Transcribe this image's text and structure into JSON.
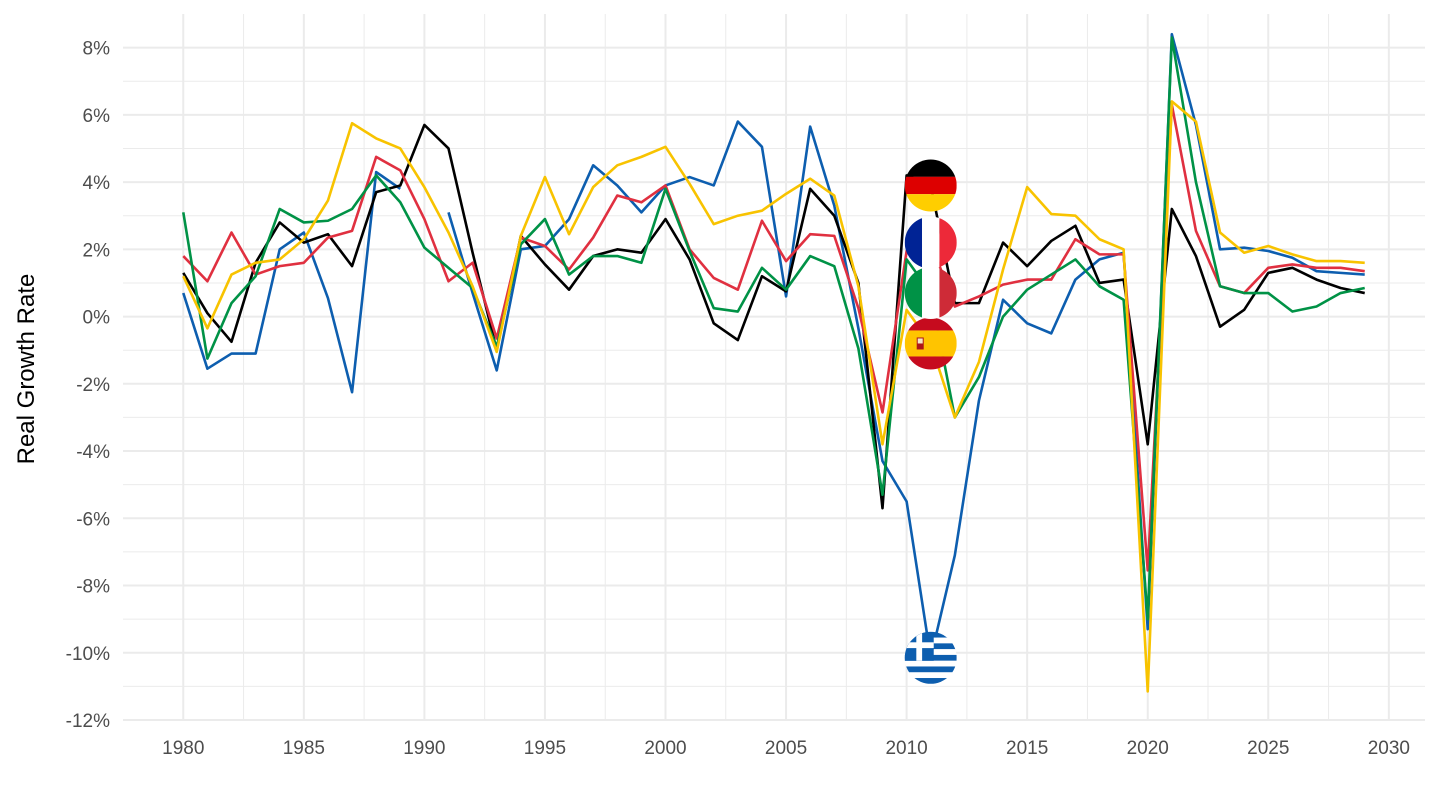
{
  "chart_data": {
    "type": "line",
    "title": "",
    "xlabel": "",
    "ylabel": "Real Growth Rate",
    "xlim": [
      1977.5,
      2031.5
    ],
    "ylim": [
      -12,
      9
    ],
    "x_ticks": [
      1980,
      1985,
      1990,
      1995,
      2000,
      2005,
      2010,
      2015,
      2020,
      2025,
      2030
    ],
    "x_tick_labels": [
      "1980",
      "1985",
      "1990",
      "1995",
      "2000",
      "2005",
      "2010",
      "2015",
      "2020",
      "2025",
      "2030"
    ],
    "y_ticks": [
      -12,
      -10,
      -8,
      -6,
      -4,
      -2,
      0,
      2,
      4,
      6,
      8
    ],
    "y_tick_labels": [
      "-12%",
      "-10%",
      "-8%",
      "-6%",
      "-4%",
      "-2%",
      "0%",
      "2%",
      "4%",
      "6%",
      "8%"
    ],
    "grid": true,
    "legend": "flag icons on lines at 2011",
    "x": [
      1980,
      1981,
      1982,
      1983,
      1984,
      1985,
      1986,
      1987,
      1988,
      1989,
      1990,
      1991,
      1992,
      1993,
      1994,
      1995,
      1996,
      1997,
      1998,
      1999,
      2000,
      2001,
      2002,
      2003,
      2004,
      2005,
      2006,
      2007,
      2008,
      2009,
      2010,
      2011,
      2012,
      2013,
      2014,
      2015,
      2016,
      2017,
      2018,
      2019,
      2020,
      2021,
      2022,
      2023,
      2024,
      2025,
      2026,
      2027,
      2028,
      2029
    ],
    "series": [
      {
        "color": "#0d5eaf",
        "flag": "greece",
        "values": [
          0.7,
          -1.55,
          -1.1,
          -1.1,
          2.0,
          2.5,
          0.55,
          -2.25,
          4.3,
          3.8,
          null,
          3.1,
          0.7,
          -1.6,
          2.0,
          2.1,
          2.9,
          4.5,
          3.9,
          3.1,
          3.9,
          4.15,
          3.9,
          5.8,
          5.05,
          0.6,
          5.65,
          3.3,
          -0.35,
          -4.3,
          -5.5,
          -10.15,
          -7.1,
          -2.5,
          0.5,
          -0.2,
          -0.5,
          1.1,
          1.7,
          1.9,
          -9.3,
          8.4,
          5.7,
          2.0,
          2.05,
          1.95,
          1.75,
          1.35,
          1.3,
          1.25
        ]
      },
      {
        "color": "#000000",
        "flag": "germany",
        "values": [
          1.3,
          0.1,
          -0.75,
          1.6,
          2.8,
          2.2,
          2.45,
          1.5,
          3.7,
          3.9,
          5.7,
          5.0,
          1.9,
          -1.0,
          2.4,
          1.55,
          0.8,
          1.8,
          2.0,
          1.9,
          2.9,
          1.7,
          -0.2,
          -0.7,
          1.2,
          0.75,
          3.8,
          3.0,
          1.0,
          -5.7,
          4.2,
          3.9,
          0.4,
          0.4,
          2.2,
          1.5,
          2.25,
          2.7,
          1.0,
          1.1,
          -3.8,
          3.2,
          1.8,
          -0.3,
          0.2,
          1.3,
          1.45,
          1.1,
          0.85,
          0.7
        ]
      },
      {
        "color": "#e03040",
        "flag": "france",
        "values": [
          1.8,
          1.05,
          2.5,
          1.25,
          1.5,
          1.6,
          2.35,
          2.55,
          4.75,
          4.35,
          2.9,
          1.05,
          1.6,
          -0.65,
          2.35,
          2.1,
          1.4,
          2.35,
          3.6,
          3.4,
          3.9,
          2.0,
          1.15,
          0.8,
          2.85,
          1.65,
          2.45,
          2.4,
          0.25,
          -2.85,
          1.95,
          2.2,
          0.3,
          0.6,
          0.95,
          1.1,
          1.1,
          2.3,
          1.85,
          1.85,
          -7.55,
          6.3,
          2.55,
          0.9,
          0.7,
          1.45,
          1.55,
          1.45,
          1.45,
          1.35
        ]
      },
      {
        "color": "#009246",
        "flag": "italy",
        "values": [
          3.1,
          -1.25,
          0.4,
          1.2,
          3.2,
          2.8,
          2.85,
          3.2,
          4.2,
          3.4,
          2.05,
          1.45,
          0.85,
          -0.9,
          2.15,
          2.9,
          1.25,
          1.8,
          1.8,
          1.6,
          3.8,
          1.95,
          0.25,
          0.15,
          1.45,
          0.8,
          1.8,
          1.5,
          -0.95,
          -5.3,
          1.7,
          0.7,
          -3.0,
          -1.8,
          0.0,
          0.8,
          1.25,
          1.7,
          0.9,
          0.5,
          -9.0,
          8.3,
          4.0,
          0.9,
          0.7,
          0.7,
          0.15,
          0.3,
          0.7,
          0.85
        ]
      },
      {
        "color": "#f8c300",
        "flag": "spain",
        "values": [
          1.2,
          -0.35,
          1.25,
          1.6,
          1.7,
          2.3,
          3.45,
          5.75,
          5.3,
          5.0,
          3.85,
          2.5,
          0.9,
          -1.05,
          2.4,
          4.15,
          2.45,
          3.85,
          4.5,
          4.75,
          5.05,
          3.95,
          2.75,
          3.0,
          3.15,
          3.65,
          4.1,
          3.6,
          0.9,
          -3.8,
          0.2,
          -0.8,
          -3.0,
          -1.35,
          1.4,
          3.85,
          3.05,
          3.0,
          2.3,
          2.0,
          -11.15,
          6.4,
          5.8,
          2.5,
          1.9,
          2.1,
          1.85,
          1.65,
          1.65,
          1.6
        ]
      }
    ]
  }
}
